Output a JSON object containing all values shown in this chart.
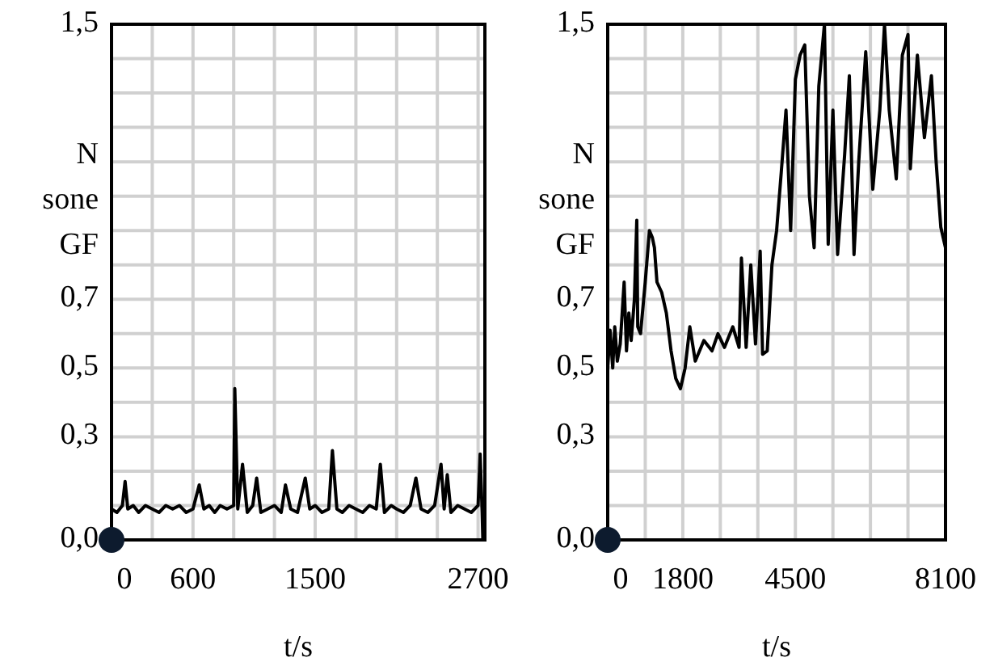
{
  "chart_data": [
    {
      "type": "line",
      "xlabel": "t/s",
      "ylabel": "N sone GF",
      "grid": true,
      "xlim": [
        0,
        2750
      ],
      "ylim": [
        0,
        1.5
      ],
      "xticks": [
        0,
        {
          "value": 300,
          "label": null
        },
        600,
        {
          "value": 900,
          "label": null
        },
        {
          "value": 1200,
          "label": null
        },
        1500,
        {
          "value": 1800,
          "label": null
        },
        {
          "value": 2100,
          "label": null
        },
        {
          "value": 2400,
          "label": null
        },
        2700
      ],
      "yticks": [
        {
          "value": 0,
          "label": "0,0"
        },
        {
          "value": 0.1,
          "label": null
        },
        {
          "value": 0.2,
          "label": null
        },
        {
          "value": 0.3,
          "label": "0,3"
        },
        {
          "value": 0.4,
          "label": null
        },
        {
          "value": 0.5,
          "label": "0,5"
        },
        {
          "value": 0.6,
          "label": null
        },
        {
          "value": 0.7,
          "label": "0,7"
        },
        {
          "value": 0.8,
          "label": null
        },
        {
          "value": 0.9,
          "label": null
        },
        {
          "value": 1.0,
          "label": null
        },
        {
          "value": 1.1,
          "label": null
        },
        {
          "value": 1.2,
          "label": null
        },
        {
          "value": 1.3,
          "label": null
        },
        {
          "value": 1.4,
          "label": null
        },
        {
          "value": 1.5,
          "label": "1,5"
        }
      ],
      "series": [
        {
          "color": "#000000",
          "x": [
            0,
            40,
            80,
            100,
            120,
            160,
            200,
            250,
            300,
            350,
            400,
            450,
            500,
            550,
            600,
            646,
            680,
            720,
            760,
            800,
            850,
            900,
            908,
            930,
            965,
            1000,
            1040,
            1069,
            1100,
            1150,
            1200,
            1250,
            1281,
            1320,
            1370,
            1427,
            1460,
            1500,
            1550,
            1600,
            1627,
            1660,
            1700,
            1750,
            1800,
            1850,
            1900,
            1950,
            1980,
            2010,
            2060,
            2100,
            2150,
            2200,
            2242,
            2280,
            2330,
            2380,
            2427,
            2450,
            2473,
            2500,
            2550,
            2600,
            2650,
            2700,
            2715,
            2730,
            2735,
            2745
          ],
          "values": [
            0.09,
            0.08,
            0.1,
            0.17,
            0.09,
            0.1,
            0.08,
            0.1,
            0.09,
            0.08,
            0.1,
            0.09,
            0.1,
            0.08,
            0.09,
            0.16,
            0.09,
            0.1,
            0.08,
            0.1,
            0.09,
            0.1,
            0.44,
            0.09,
            0.22,
            0.08,
            0.1,
            0.18,
            0.08,
            0.09,
            0.1,
            0.08,
            0.16,
            0.09,
            0.08,
            0.18,
            0.09,
            0.1,
            0.08,
            0.09,
            0.26,
            0.09,
            0.08,
            0.1,
            0.09,
            0.08,
            0.1,
            0.09,
            0.22,
            0.08,
            0.1,
            0.09,
            0.08,
            0.1,
            0.18,
            0.09,
            0.08,
            0.1,
            0.22,
            0.09,
            0.19,
            0.08,
            0.1,
            0.09,
            0.08,
            0.1,
            0.25,
            0.08,
            0.0,
            0.0
          ]
        }
      ]
    },
    {
      "type": "line",
      "xlabel": "t/s",
      "ylabel": "N sone GF",
      "grid": true,
      "xlim": [
        0,
        8100
      ],
      "ylim": [
        0,
        1.5
      ],
      "xticks": [
        0,
        {
          "value": 900,
          "label": null
        },
        1800,
        {
          "value": 2700,
          "label": null
        },
        {
          "value": 3600,
          "label": null
        },
        4500,
        {
          "value": 5400,
          "label": null
        },
        {
          "value": 6300,
          "label": null
        },
        {
          "value": 7200,
          "label": null
        },
        8100
      ],
      "yticks": [
        {
          "value": 0,
          "label": "0,0"
        },
        {
          "value": 0.1,
          "label": null
        },
        {
          "value": 0.2,
          "label": null
        },
        {
          "value": 0.3,
          "label": "0,3"
        },
        {
          "value": 0.4,
          "label": null
        },
        {
          "value": 0.5,
          "label": "0,5"
        },
        {
          "value": 0.6,
          "label": null
        },
        {
          "value": 0.7,
          "label": "0,7"
        },
        {
          "value": 0.8,
          "label": null
        },
        {
          "value": 0.9,
          "label": null
        },
        {
          "value": 1.0,
          "label": null
        },
        {
          "value": 1.1,
          "label": null
        },
        {
          "value": 1.2,
          "label": null
        },
        {
          "value": 1.3,
          "label": null
        },
        {
          "value": 1.4,
          "label": null
        },
        {
          "value": 1.5,
          "label": "1,5"
        }
      ],
      "series": [
        {
          "color": "#000000",
          "x": [
            0,
            56,
            120,
            169,
            230,
            300,
            394,
            450,
            506,
            563,
            640,
            697,
            720,
            787,
            900,
            1000,
            1069,
            1120,
            1181,
            1294,
            1406,
            1519,
            1631,
            1744,
            1856,
            1969,
            2100,
            2306,
            2500,
            2644,
            2800,
            3000,
            3150,
            3206,
            3319,
            3431,
            3544,
            3656,
            3713,
            3825,
            3938,
            4050,
            4162,
            4275,
            4387,
            4500,
            4612,
            4725,
            4837,
            4950,
            5062,
            5197,
            5287,
            5400,
            5512,
            5681,
            5794,
            5906,
            6019,
            6187,
            6356,
            6525,
            6637,
            6750,
            6919,
            7065,
            7200,
            7256,
            7425,
            7594,
            7762,
            7875,
            7987,
            8043,
            8100
          ],
          "values": [
            0.5,
            0.61,
            0.5,
            0.62,
            0.52,
            0.57,
            0.75,
            0.55,
            0.66,
            0.58,
            0.7,
            0.93,
            0.62,
            0.6,
            0.75,
            0.9,
            0.88,
            0.85,
            0.75,
            0.72,
            0.66,
            0.55,
            0.47,
            0.44,
            0.5,
            0.62,
            0.52,
            0.58,
            0.55,
            0.6,
            0.56,
            0.62,
            0.56,
            0.82,
            0.56,
            0.8,
            0.57,
            0.84,
            0.54,
            0.55,
            0.8,
            0.9,
            1.07,
            1.25,
            0.9,
            1.34,
            1.41,
            1.44,
            1.0,
            0.85,
            1.32,
            1.5,
            0.86,
            1.25,
            0.83,
            1.12,
            1.35,
            0.83,
            1.1,
            1.42,
            1.02,
            1.25,
            1.5,
            1.25,
            1.05,
            1.41,
            1.47,
            1.08,
            1.41,
            1.17,
            1.35,
            1.1,
            0.91,
            0.88,
            0.85
          ]
        }
      ]
    }
  ]
}
